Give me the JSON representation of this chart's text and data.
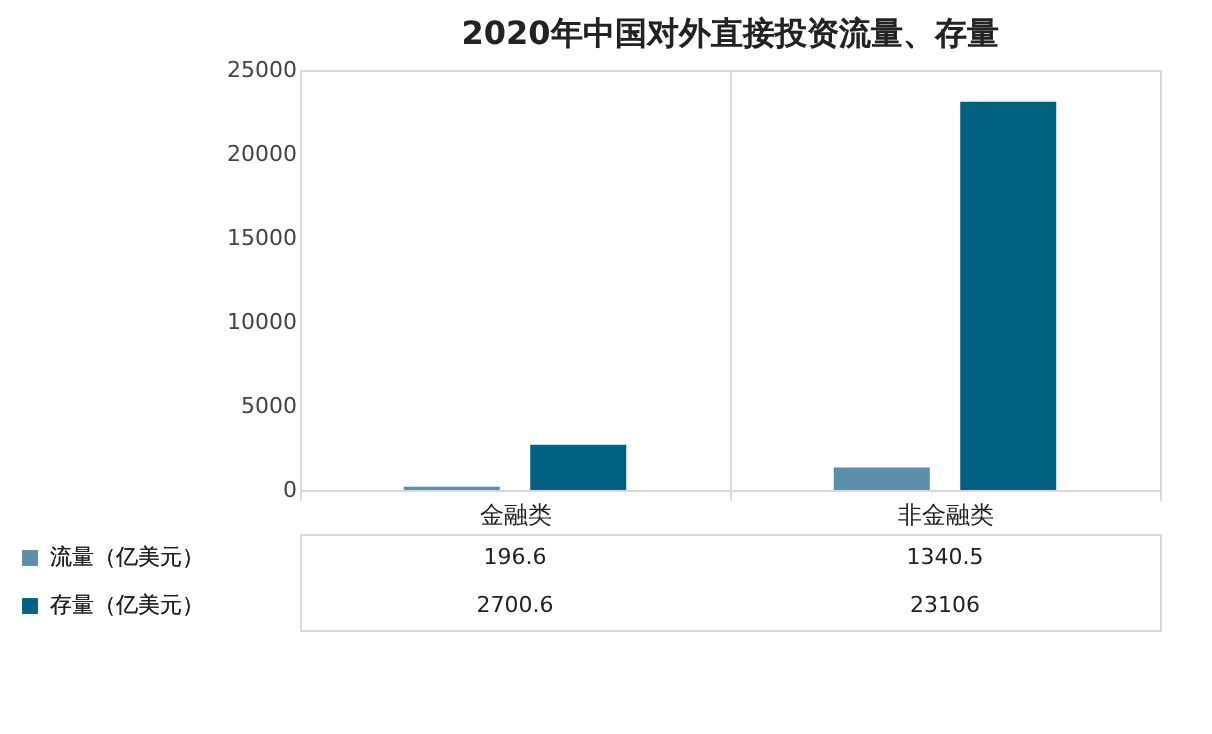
{
  "chart_data": {
    "type": "bar",
    "title": "2020年中国对外直接投资流量、存量",
    "categories": [
      "金融类",
      "非金融类"
    ],
    "series": [
      {
        "name": "流量（亿美元）",
        "color": "#5a8fa7",
        "values": [
          196.6,
          1340.5
        ]
      },
      {
        "name": "存量（亿美元）",
        "color": "#00607f",
        "values": [
          2700.6,
          23106
        ]
      }
    ],
    "ylim": [
      0,
      25000
    ],
    "yticks": [
      0,
      5000,
      10000,
      15000,
      20000,
      25000
    ],
    "grid": false,
    "legend": "bottom",
    "data_labels": true
  }
}
